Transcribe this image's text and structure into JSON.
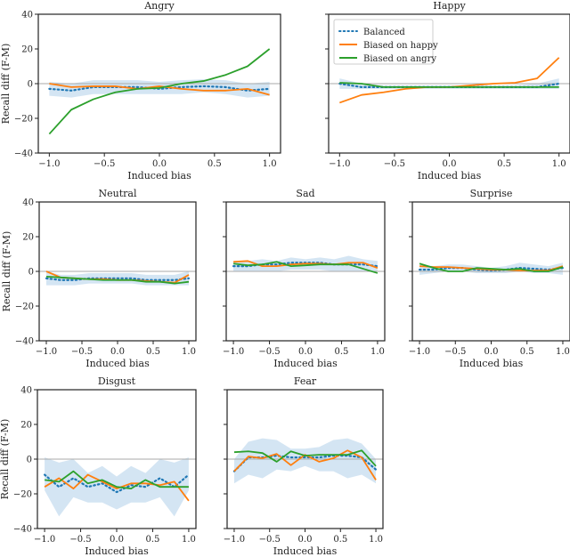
{
  "chart_data": [
    {
      "type": "line",
      "title": "Angry",
      "xlabel": "Induced bias",
      "ylabel": "Recall diff (F-M)",
      "xlim": [
        -1.1,
        1.1
      ],
      "ylim": [
        -40,
        40
      ],
      "x": [
        -1.0,
        -0.8,
        -0.6,
        -0.4,
        -0.2,
        0.0,
        0.2,
        0.4,
        0.6,
        0.8,
        1.0
      ],
      "xticks": [
        "−1.0",
        "−0.5",
        "0.0",
        "0.5",
        "1.0"
      ],
      "yticks": [
        "−40",
        "−20",
        "0",
        "20",
        "40"
      ],
      "series": [
        {
          "name": "Balanced",
          "values": [
            -3,
            -4,
            -2,
            -2,
            -2,
            -3,
            -2,
            -1.5,
            -2,
            -4,
            -3
          ],
          "band_lower": [
            -7,
            -8,
            -6,
            -6,
            -6,
            -6,
            -6,
            -5,
            -6,
            -8,
            -7
          ],
          "band_upper": [
            1,
            0,
            2,
            2,
            2,
            1,
            2,
            2.5,
            2,
            0,
            1
          ]
        },
        {
          "name": "Biased on happy",
          "values": [
            0,
            -2,
            -1.5,
            -1.5,
            -3,
            -1.5,
            -3,
            -4,
            -4,
            -3,
            -6.5
          ]
        },
        {
          "name": "Biased on angry",
          "values": [
            -29,
            -15,
            -9,
            -5,
            -3,
            -2.5,
            0,
            1.5,
            5,
            10,
            20
          ]
        }
      ]
    },
    {
      "type": "line",
      "title": "Happy",
      "xlabel": "Induced bias",
      "xlim": [
        -1.1,
        1.1
      ],
      "ylim": [
        -40,
        40
      ],
      "x": [
        -1.0,
        -0.8,
        -0.6,
        -0.4,
        -0.2,
        0.0,
        0.2,
        0.4,
        0.6,
        0.8,
        1.0
      ],
      "xticks": [
        "−1.0",
        "−0.5",
        "0.0",
        "0.5",
        "1.0"
      ],
      "legend": "top-left",
      "series": [
        {
          "name": "Balanced",
          "values": [
            0,
            -2,
            -2,
            -2,
            -2,
            -2,
            -2,
            -2,
            -2,
            -2,
            0
          ],
          "band_lower": [
            -3,
            -3,
            -3,
            -3,
            -3,
            -3,
            -3,
            -3,
            -3,
            -3,
            -3
          ],
          "band_upper": [
            3,
            0,
            -1,
            -1,
            -1,
            -1,
            -1,
            -1,
            -1,
            0,
            3
          ]
        },
        {
          "name": "Biased on happy",
          "values": [
            -11,
            -6.5,
            -5,
            -3,
            -2,
            -2,
            -1,
            0,
            0.5,
            3,
            15
          ]
        },
        {
          "name": "Biased on angry",
          "values": [
            0.5,
            0,
            -2,
            -2,
            -2,
            -2,
            -2,
            -2,
            -2,
            -2,
            -2
          ]
        }
      ]
    },
    {
      "type": "line",
      "title": "Neutral",
      "xlabel": "Induced bias",
      "ylabel": "Recall diff (F-M)",
      "xlim": [
        -1.1,
        1.1
      ],
      "ylim": [
        -40,
        40
      ],
      "x": [
        -1.0,
        -0.8,
        -0.6,
        -0.4,
        -0.2,
        0.0,
        0.2,
        0.4,
        0.6,
        0.8,
        1.0
      ],
      "xticks": [
        "−1.0",
        "−0.5",
        "0.0",
        "0.5",
        "1.0"
      ],
      "yticks": [
        "−40",
        "−20",
        "0",
        "20",
        "40"
      ],
      "series": [
        {
          "name": "Balanced",
          "values": [
            -4,
            -5,
            -5,
            -4,
            -4,
            -4,
            -4,
            -5,
            -5,
            -5,
            -4
          ],
          "band_lower": [
            -8,
            -8,
            -8,
            -7,
            -7,
            -7,
            -7,
            -8,
            -8,
            -8,
            -8
          ],
          "band_upper": [
            0,
            -2,
            -2,
            -1,
            -1,
            -1,
            -1,
            -2,
            -2,
            -2,
            0
          ]
        },
        {
          "name": "Biased on happy",
          "values": [
            0,
            -3.5,
            -4,
            -4.5,
            -4.5,
            -5,
            -5,
            -5.5,
            -6,
            -6.5,
            -2
          ]
        },
        {
          "name": "Biased on angry",
          "values": [
            -3,
            -3.5,
            -4,
            -4.5,
            -5,
            -5,
            -5,
            -6,
            -6,
            -7,
            -6
          ]
        }
      ]
    },
    {
      "type": "line",
      "title": "Sad",
      "xlabel": "Induced bias",
      "xlim": [
        -1.1,
        1.1
      ],
      "ylim": [
        -40,
        40
      ],
      "x": [
        -1.0,
        -0.8,
        -0.6,
        -0.4,
        -0.2,
        0.0,
        0.2,
        0.4,
        0.6,
        0.8,
        1.0
      ],
      "xticks": [
        "−1.0",
        "−0.5",
        "0.0",
        "0.5",
        "1.0"
      ],
      "series": [
        {
          "name": "Balanced",
          "values": [
            3,
            3,
            4,
            4,
            5,
            5,
            5,
            4,
            4,
            4,
            3
          ],
          "band_lower": [
            0,
            0,
            0,
            0,
            1,
            1,
            1,
            0,
            0,
            0,
            0
          ],
          "band_upper": [
            6,
            6,
            7,
            6,
            8,
            7,
            8,
            7,
            9,
            7,
            6
          ]
        },
        {
          "name": "Biased on happy",
          "values": [
            5.5,
            6,
            3,
            3,
            4,
            4.5,
            4.5,
            4,
            5,
            5,
            2
          ]
        },
        {
          "name": "Biased on angry",
          "values": [
            4.5,
            3.5,
            4,
            5.5,
            3,
            3.5,
            4,
            4,
            4,
            1.5,
            -1
          ]
        }
      ]
    },
    {
      "type": "line",
      "title": "Surprise",
      "xlabel": "Induced bias",
      "xlim": [
        -1.1,
        1.1
      ],
      "ylim": [
        -40,
        40
      ],
      "x": [
        -1.0,
        -0.8,
        -0.6,
        -0.4,
        -0.2,
        0.0,
        0.2,
        0.4,
        0.6,
        0.8,
        1.0
      ],
      "xticks": [
        "−1.0",
        "−0.5",
        "0.0",
        "0.5",
        "1.0"
      ],
      "series": [
        {
          "name": "Balanced",
          "values": [
            1,
            1,
            2,
            2,
            1,
            0.5,
            1,
            2,
            1.5,
            1,
            2
          ],
          "band_lower": [
            -2,
            -1,
            0,
            0,
            -1,
            -1,
            -1,
            0,
            -1,
            -1,
            -2
          ],
          "band_upper": [
            4,
            3,
            4,
            4,
            3,
            2,
            3,
            5,
            4,
            3,
            5
          ]
        },
        {
          "name": "Biased on happy",
          "values": [
            3,
            2.5,
            2.5,
            2,
            1.5,
            1,
            1,
            0.5,
            0.5,
            0.5,
            3
          ]
        },
        {
          "name": "Biased on angry",
          "values": [
            4.5,
            2,
            0,
            0,
            2,
            1.5,
            1,
            1.5,
            0,
            0,
            2.5
          ]
        }
      ]
    },
    {
      "type": "line",
      "title": "Disgust",
      "xlabel": "Induced bias",
      "ylabel": "Recall diff (F-M)",
      "xlim": [
        -1.1,
        1.1
      ],
      "ylim": [
        -40,
        40
      ],
      "x": [
        -1.0,
        -0.8,
        -0.6,
        -0.4,
        -0.2,
        0.0,
        0.2,
        0.4,
        0.6,
        0.8,
        1.0
      ],
      "xticks": [
        "−1.0",
        "−0.5",
        "0.0",
        "0.5",
        "1.0"
      ],
      "yticks": [
        "−40",
        "−20",
        "0",
        "20",
        "40"
      ],
      "series": [
        {
          "name": "Balanced",
          "values": [
            -9,
            -16,
            -11,
            -16,
            -14,
            -19,
            -15,
            -16,
            -11,
            -16,
            -9
          ],
          "band_lower": [
            -18,
            -33,
            -22,
            -25,
            -25,
            -29,
            -25,
            -25,
            -22,
            -33,
            -18
          ],
          "band_upper": [
            1,
            -2,
            0,
            -8,
            -4,
            -10,
            -4,
            -8,
            0,
            -2,
            1
          ]
        },
        {
          "name": "Biased on happy",
          "values": [
            -16,
            -11,
            -17,
            -9,
            -13,
            -17,
            -14,
            -14,
            -15,
            -13,
            -24
          ]
        },
        {
          "name": "Biased on angry",
          "values": [
            -12,
            -13,
            -7,
            -14,
            -12,
            -16,
            -17,
            -12,
            -16,
            -16,
            -16
          ]
        }
      ]
    },
    {
      "type": "line",
      "title": "Fear",
      "xlabel": "Induced bias",
      "xlim": [
        -1.1,
        1.1
      ],
      "ylim": [
        -40,
        40
      ],
      "x": [
        -1.0,
        -0.8,
        -0.6,
        -0.4,
        -0.2,
        0.0,
        0.2,
        0.4,
        0.6,
        0.8,
        1.0
      ],
      "xticks": [
        "−1.0",
        "−0.5",
        "0.0",
        "0.5",
        "1.0"
      ],
      "series": [
        {
          "name": "Balanced",
          "values": [
            -7,
            1,
            1,
            2,
            1,
            1,
            1,
            2,
            2,
            1,
            -6
          ],
          "band_lower": [
            -14,
            -9,
            -11,
            -6,
            -7,
            -4,
            -7,
            -7,
            -11,
            -9,
            -14
          ],
          "band_upper": [
            0,
            10,
            12,
            11,
            6,
            6,
            7,
            11,
            12,
            9,
            0
          ]
        },
        {
          "name": "Biased on happy",
          "values": [
            -7,
            1.5,
            0.5,
            3,
            -3.5,
            2.5,
            -1.5,
            0.5,
            5,
            1,
            -12
          ]
        },
        {
          "name": "Biased on angry",
          "values": [
            4,
            4.5,
            3.5,
            -1.5,
            4.5,
            2,
            2.5,
            2.5,
            2.5,
            5,
            -4
          ]
        }
      ]
    }
  ],
  "colors": {
    "Balanced": "#1f77b4",
    "Biased on happy": "#ff7f0e",
    "Biased on angry": "#2ca02c",
    "band": "#c6dcef",
    "zero_line": "#aaaaaa"
  }
}
